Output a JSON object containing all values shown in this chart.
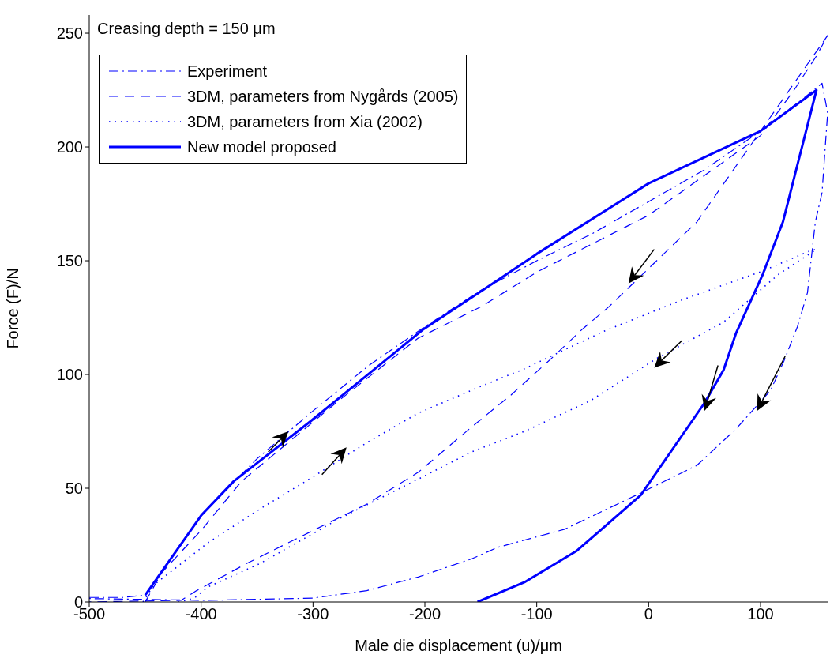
{
  "chart_data": {
    "type": "line",
    "xlabel": "Male die displacement (u)/μm",
    "ylabel": "Force (F)/N",
    "annotations": [
      "Creasing depth = 150 μm"
    ],
    "xlim": [
      -500,
      160
    ],
    "ylim": [
      0,
      258
    ],
    "xticks": [
      -500,
      -400,
      -300,
      -200,
      -100,
      0,
      100
    ],
    "yticks": [
      0,
      50,
      100,
      150,
      200,
      250
    ],
    "grid": false,
    "legend": "top left",
    "marker": "none",
    "series": [
      {
        "name": "Experiment",
        "color": "#0000ff",
        "line_style": "dashdot",
        "x": [
          -500,
          -470,
          -450,
          -400,
          -350,
          -300,
          -250,
          -200,
          -150,
          -100,
          -50,
          0,
          50,
          100,
          140,
          155,
          160,
          155,
          149,
          142,
          133,
          121,
          109,
          78,
          43,
          -11,
          -75,
          -135,
          -158,
          -206,
          -252,
          -300,
          -394,
          -500
        ],
        "values": [
          2,
          2,
          3,
          38,
          63,
          84,
          104,
          121,
          137,
          150,
          162,
          176,
          190,
          207,
          222,
          228,
          215,
          180,
          167,
          136,
          121,
          106,
          93,
          76,
          60,
          47,
          32,
          24,
          19,
          11,
          5,
          1.7,
          0.7,
          1.5
        ]
      },
      {
        "name": "3DM, parameters from Nygårds (2005)",
        "color": "#0000ff",
        "line_style": "dashed",
        "x": [
          -450,
          -435,
          -399,
          -364,
          -277,
          -206,
          -149,
          -100,
          0,
          100,
          130,
          150,
          160,
          43,
          -35,
          -59,
          -87,
          -123,
          -158,
          -206,
          -252,
          -312,
          -359,
          -404,
          -418,
          -500
        ],
        "values": [
          0,
          13,
          32,
          53,
          88.5,
          116,
          130,
          145,
          170,
          205,
          225,
          240,
          249,
          167,
          130,
          120,
          107,
          91,
          77,
          57,
          43,
          28.5,
          17,
          5,
          0.7,
          0
        ],
        "marker": "none"
      },
      {
        "name": "3DM, parameters from Xia (2002)",
        "color": "#0000ff",
        "line_style": "dotted",
        "x": [
          -452,
          -442,
          -394,
          -347,
          -300,
          -252,
          -206,
          -149,
          -111,
          -40,
          31,
          102,
          145,
          150,
          116,
          67,
          7,
          -52,
          -111,
          -158,
          -206,
          -277,
          -347,
          -394,
          -406,
          -420
        ],
        "values": [
          0,
          7.6,
          26,
          41,
          55,
          70,
          83,
          95,
          102.5,
          119,
          133,
          145.5,
          154.5,
          155,
          144,
          123,
          107,
          88.5,
          75,
          66,
          54,
          36.5,
          17,
          6.6,
          1.7,
          0
        ]
      },
      {
        "name": "New model proposed",
        "color": "#0000ff",
        "line_style": "solid",
        "x": [
          -450,
          -400,
          -371,
          -302,
          -201,
          -144,
          -100,
          0,
          100,
          150,
          120,
          102,
          78,
          67,
          50,
          -7,
          -64,
          -111,
          -153
        ],
        "values": [
          3,
          38,
          53,
          79.5,
          120,
          138.5,
          153,
          184,
          207,
          225,
          167,
          144,
          118,
          102,
          87.5,
          47,
          22.6,
          8.7,
          0
        ]
      }
    ]
  }
}
